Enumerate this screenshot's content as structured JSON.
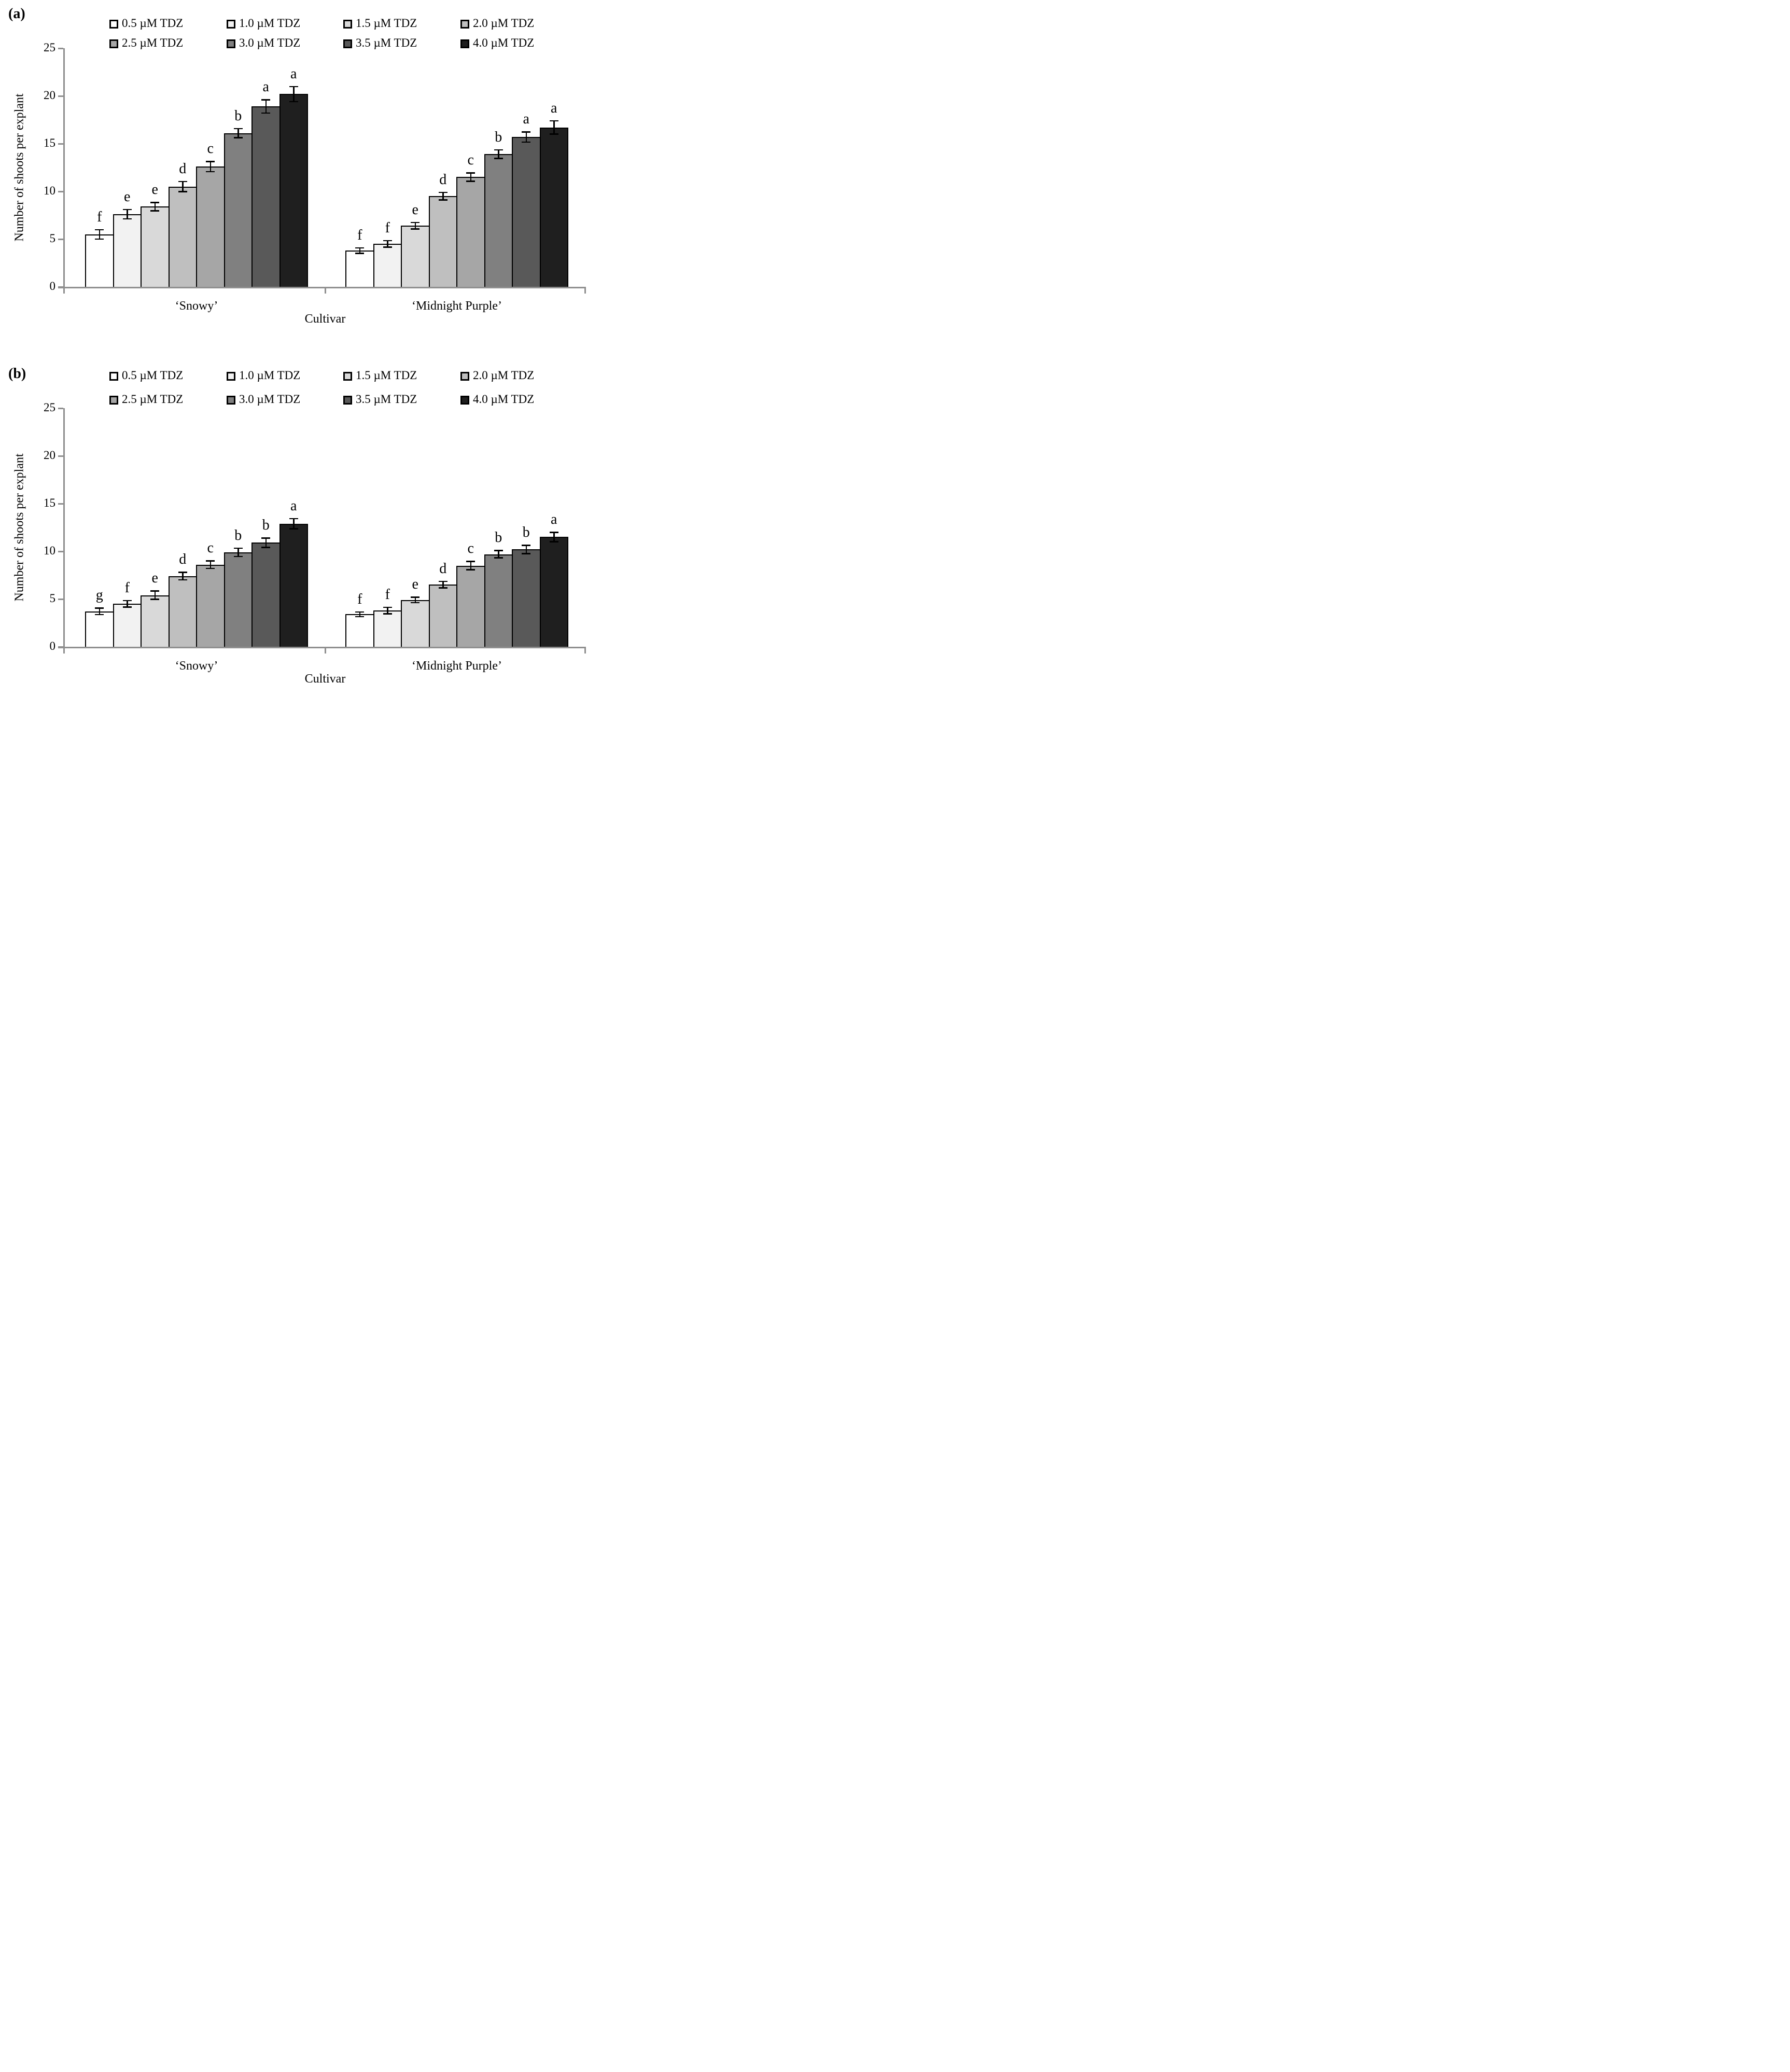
{
  "chart_data": [
    {
      "type": "bar",
      "panel_label": "(a)",
      "ylabel": "Number of shoots per explant",
      "xlabel": "Cultivar",
      "ylim": [
        0,
        25
      ],
      "yticks": [
        0,
        5,
        10,
        15,
        20,
        25
      ],
      "grid": false,
      "legend_position": "top",
      "categories": [
        "‘Snowy’",
        "‘Midnight Purple’"
      ],
      "series": [
        {
          "name": "0.5 µM TDZ",
          "color": "#ffffff",
          "values": [
            5.5,
            3.8
          ],
          "errors": [
            0.5,
            0.3
          ],
          "letters": [
            "f",
            "f"
          ]
        },
        {
          "name": "1.0 µM TDZ",
          "color": "#f2f2f2",
          "values": [
            7.6,
            4.5
          ],
          "errors": [
            0.5,
            0.35
          ],
          "letters": [
            "e",
            "f"
          ]
        },
        {
          "name": "1.5 µM TDZ",
          "color": "#d9d9d9",
          "values": [
            8.4,
            6.4
          ],
          "errors": [
            0.45,
            0.35
          ],
          "letters": [
            "e",
            "e"
          ]
        },
        {
          "name": "2.0 µM TDZ",
          "color": "#bfbfbf",
          "values": [
            10.5,
            9.5
          ],
          "errors": [
            0.55,
            0.4
          ],
          "letters": [
            "d",
            "d"
          ]
        },
        {
          "name": "2.5 µM TDZ",
          "color": "#a6a6a6",
          "values": [
            12.6,
            11.5
          ],
          "errors": [
            0.55,
            0.45
          ],
          "letters": [
            "c",
            "c"
          ]
        },
        {
          "name": "3.0 µM TDZ",
          "color": "#808080",
          "values": [
            16.1,
            13.9
          ],
          "errors": [
            0.5,
            0.45
          ],
          "letters": [
            "b",
            "b"
          ]
        },
        {
          "name": "3.5 µM TDZ",
          "color": "#595959",
          "values": [
            18.9,
            15.7
          ],
          "errors": [
            0.7,
            0.55
          ],
          "letters": [
            "a",
            "a"
          ]
        },
        {
          "name": "4.0 µM TDZ",
          "color": "#1f1f1f",
          "values": [
            20.2,
            16.7
          ],
          "errors": [
            0.8,
            0.7
          ],
          "letters": [
            "a",
            "a"
          ]
        }
      ]
    },
    {
      "type": "bar",
      "panel_label": "(b)",
      "ylabel": "Number of shoots per explant",
      "xlabel": "Cultivar",
      "ylim": [
        0,
        25
      ],
      "yticks": [
        0,
        5,
        10,
        15,
        20,
        25
      ],
      "grid": false,
      "legend_position": "top",
      "categories": [
        "‘Snowy’",
        "‘Midnight Purple’"
      ],
      "series": [
        {
          "name": "0.5 µM TDZ",
          "color": "#ffffff",
          "values": [
            3.7,
            3.4
          ],
          "errors": [
            0.35,
            0.25
          ],
          "letters": [
            "g",
            "f"
          ]
        },
        {
          "name": "1.0 µM TDZ",
          "color": "#f2f2f2",
          "values": [
            4.5,
            3.8
          ],
          "errors": [
            0.35,
            0.35
          ],
          "letters": [
            "f",
            "f"
          ]
        },
        {
          "name": "1.5 µM TDZ",
          "color": "#d9d9d9",
          "values": [
            5.4,
            4.9
          ],
          "errors": [
            0.45,
            0.3
          ],
          "letters": [
            "e",
            "e"
          ]
        },
        {
          "name": "2.0 µM TDZ",
          "color": "#bfbfbf",
          "values": [
            7.4,
            6.5
          ],
          "errors": [
            0.4,
            0.35
          ],
          "letters": [
            "d",
            "d"
          ]
        },
        {
          "name": "2.5 µM TDZ",
          "color": "#a6a6a6",
          "values": [
            8.6,
            8.5
          ],
          "errors": [
            0.4,
            0.45
          ],
          "letters": [
            "c",
            "c"
          ]
        },
        {
          "name": "3.0 µM TDZ",
          "color": "#808080",
          "values": [
            9.9,
            9.7
          ],
          "errors": [
            0.45,
            0.4
          ],
          "letters": [
            "b",
            "b"
          ]
        },
        {
          "name": "3.5 µM TDZ",
          "color": "#595959",
          "values": [
            10.9,
            10.2
          ],
          "errors": [
            0.5,
            0.45
          ],
          "letters": [
            "b",
            "b"
          ]
        },
        {
          "name": "4.0 µM TDZ",
          "color": "#1f1f1f",
          "values": [
            12.9,
            11.5
          ],
          "errors": [
            0.55,
            0.5
          ],
          "letters": [
            "a",
            "a"
          ]
        }
      ]
    }
  ]
}
